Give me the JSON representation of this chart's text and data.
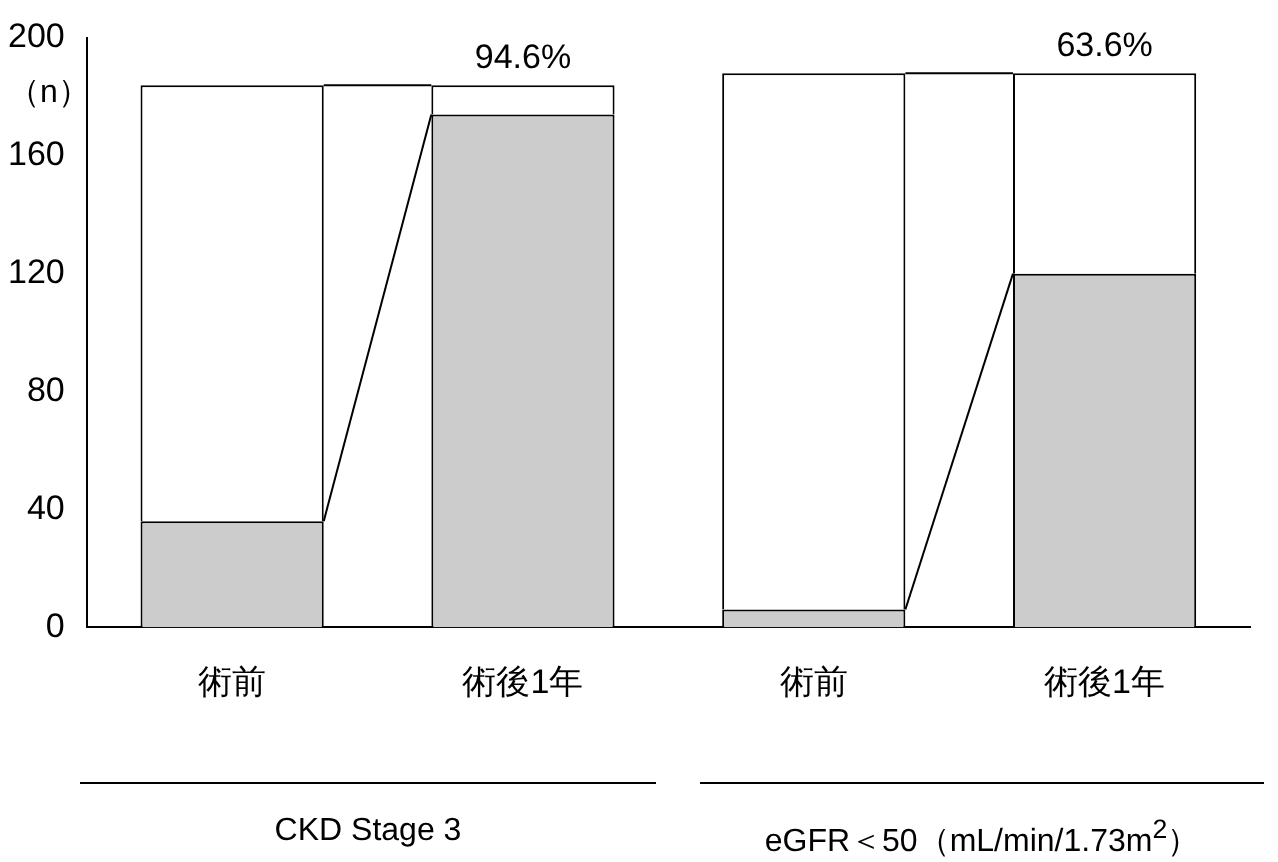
{
  "chart_data": {
    "type": "bar",
    "stacked": true,
    "ylabel": "（n）",
    "categories": [
      "術前",
      "術後1年",
      "術前",
      "術後1年"
    ],
    "series": [
      {
        "color": "#cccccc",
        "values": [
          36,
          174,
          6,
          120
        ]
      },
      {
        "color": "#ffffff",
        "values": [
          148,
          10,
          182,
          68
        ]
      }
    ],
    "ylim": [
      0,
      200
    ],
    "yticks": [
      0,
      40,
      80,
      120,
      160,
      200
    ],
    "grid": false,
    "legend": false,
    "annotations": [
      {
        "text": "94.6%",
        "y": 184
      },
      {
        "text": "63.6%",
        "y": 188
      },
      "CKD Stage 3",
      "eGFR＜50（mL/min/1.73m$^{2}$）"
    ]
  }
}
